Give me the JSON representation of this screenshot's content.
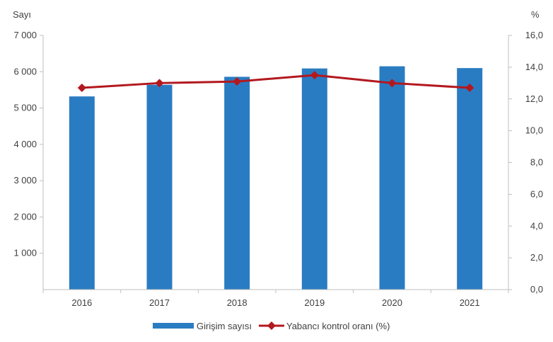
{
  "chart_data": {
    "type": "bar+line",
    "categories": [
      "2016",
      "2017",
      "2018",
      "2019",
      "2020",
      "2021"
    ],
    "series": [
      {
        "name": "Girişim sayısı",
        "type": "bar",
        "axis": "left",
        "color": "#2a7cc2",
        "values": [
          5320,
          5640,
          5860,
          6090,
          6150,
          6100
        ]
      },
      {
        "name": "Yabancı kontrol oranı (%)",
        "type": "line",
        "axis": "right",
        "color": "#b3181f",
        "marker": "diamond",
        "values": [
          12.7,
          13.0,
          13.1,
          13.5,
          13.0,
          12.7
        ]
      }
    ],
    "left_axis": {
      "label": "Sayı",
      "ylim": [
        0,
        7000
      ],
      "ticks": [
        1000,
        2000,
        3000,
        4000,
        5000,
        6000,
        7000
      ],
      "tick_labels": [
        "1 000",
        "2 000",
        "3 000",
        "4 000",
        "5 000",
        "6 000",
        "7 000"
      ]
    },
    "right_axis": {
      "label": "%",
      "ylim": [
        0,
        16
      ],
      "ticks": [
        0,
        2,
        4,
        6,
        8,
        10,
        12,
        14,
        16
      ],
      "tick_labels": [
        "0,0",
        "2,0",
        "4,0",
        "6,0",
        "8,0",
        "10,0",
        "12,0",
        "14,0",
        "16,0"
      ]
    },
    "grid": false,
    "legend": "bottom"
  }
}
